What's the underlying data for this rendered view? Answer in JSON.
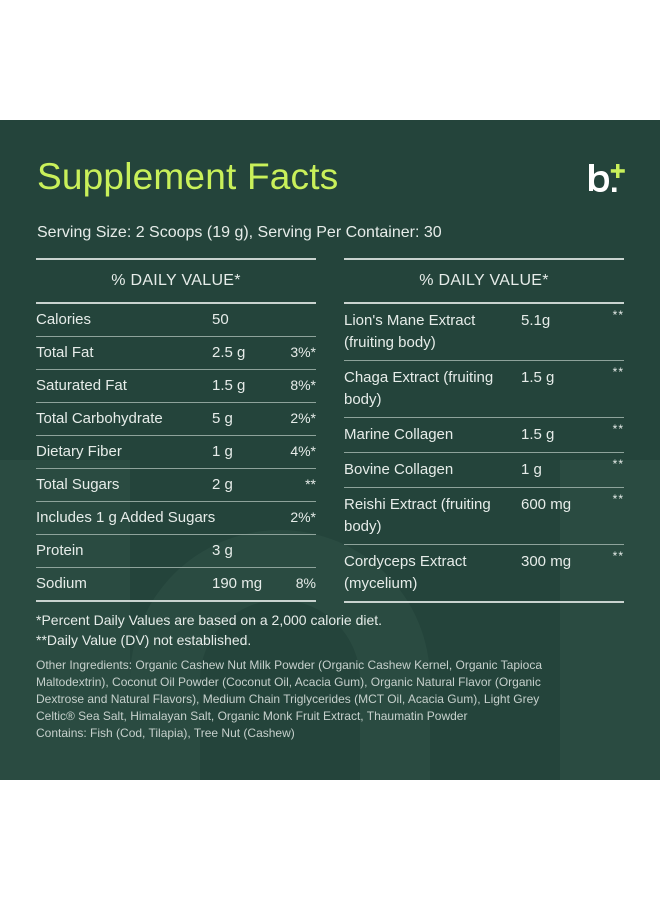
{
  "title": "Supplement Facts",
  "logo_text": "b+",
  "serving": "Serving Size: 2 Scoops (19 g), Serving Per Container: 30",
  "left_table": {
    "header": "% DAILY VALUE*",
    "rows": [
      {
        "name": "Calories",
        "amount": "50",
        "dv": ""
      },
      {
        "name": "Total Fat",
        "amount": "2.5 g",
        "dv": "3%*"
      },
      {
        "name": "Saturated Fat",
        "amount": "1.5 g",
        "dv": "8%*"
      },
      {
        "name": "Total Carbohydrate",
        "amount": "5 g",
        "dv": "2%*"
      },
      {
        "name": "Dietary Fiber",
        "amount": "1 g",
        "dv": "4%*"
      },
      {
        "name": "Total Sugars",
        "amount": "2 g",
        "dv": "**"
      },
      {
        "name": "Includes 1 g Added Sugars",
        "amount": "",
        "dv": "2%*"
      },
      {
        "name": "Protein",
        "amount": "3 g",
        "dv": ""
      },
      {
        "name": "Sodium",
        "amount": "190 mg",
        "dv": "8%"
      }
    ]
  },
  "right_table": {
    "header": "% DAILY VALUE*",
    "rows": [
      {
        "name": "Lion's Mane Extract (fruiting body)",
        "amount": "5.1g",
        "dv": "**"
      },
      {
        "name": "Chaga Extract (fruiting body)",
        "amount": "1.5 g",
        "dv": "**"
      },
      {
        "name": "Marine Collagen",
        "amount": "1.5 g",
        "dv": "**"
      },
      {
        "name": "Bovine Collagen",
        "amount": "1 g",
        "dv": "**"
      },
      {
        "name": "Reishi Extract (fruiting body)",
        "amount": "600 mg",
        "dv": "**"
      },
      {
        "name": "Cordyceps Extract (mycelium)",
        "amount": "300 mg",
        "dv": "**"
      }
    ]
  },
  "footnotes": [
    "*Percent Daily Values are based on a 2,000 calorie diet.",
    "**Daily Value (DV) not established."
  ],
  "ingredients_lines": [
    "Other Ingredients: Organic Cashew Nut Milk Powder (Organic Cashew Kernel, Organic Tapioca",
    "Maltodextrin), Coconut Oil Powder (Coconut Oil, Acacia Gum), Organic Natural Flavor (Organic",
    "Dextrose and Natural Flavors), Medium Chain Triglycerides (MCT Oil, Acacia Gum), Light Grey",
    "Celtic® Sea Salt, Himalayan Salt, Organic Monk Fruit Extract, Thaumatin Powder",
    "Contains: Fish (Cod, Tilapia), Tree Nut (Cashew)"
  ],
  "colors": {
    "panel_bg": "#24443b",
    "title": "#c9f05a",
    "text": "#e6ece9"
  }
}
